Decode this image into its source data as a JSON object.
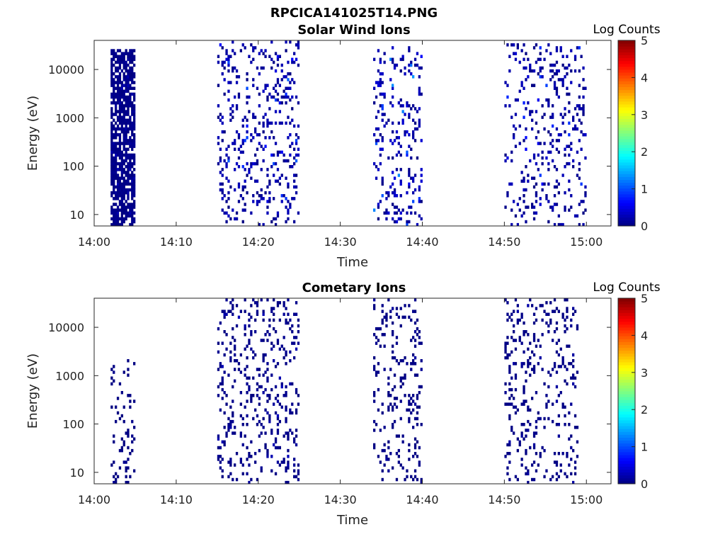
{
  "figure": {
    "title": "RPCICA141025T14.PNG"
  },
  "colorbar": {
    "label": "Log Counts",
    "ticks": [
      "0",
      "1",
      "2",
      "3",
      "4",
      "5"
    ],
    "min": 0,
    "max": 5
  },
  "chart_data": [
    {
      "type": "heatmap",
      "title": "Solar Wind Ions",
      "xlabel": "Time",
      "ylabel": "Energy (eV)",
      "xticks": [
        "14:00",
        "14:10",
        "14:20",
        "14:30",
        "14:40",
        "14:50",
        "15:00"
      ],
      "yticks": [
        "10",
        "100",
        "1000",
        "10000"
      ],
      "xlim": [
        "14:00",
        "15:03"
      ],
      "ylim": [
        5.8,
        40000
      ],
      "yscale": "log",
      "zlabel": "Log Counts",
      "zlim": [
        0,
        5
      ],
      "colormap": "jet",
      "bursts": [
        {
          "start": "14:02",
          "end": "14:05",
          "energy_range": [
            6,
            28000
          ],
          "max_log_counts": 0.3
        },
        {
          "start": "14:15",
          "end": "14:25",
          "energy_range": [
            6,
            38000
          ],
          "max_log_counts": 1.1
        },
        {
          "start": "14:34",
          "end": "14:40",
          "energy_range": [
            6,
            30000
          ],
          "max_log_counts": 1.4
        },
        {
          "start": "14:50",
          "end": "15:00",
          "energy_range": [
            6,
            36000
          ],
          "max_log_counts": 1.0
        }
      ]
    },
    {
      "type": "heatmap",
      "title": "Cometary Ions",
      "xlabel": "Time",
      "ylabel": "Energy (eV)",
      "xticks": [
        "14:00",
        "14:10",
        "14:20",
        "14:30",
        "14:40",
        "14:50",
        "15:00"
      ],
      "yticks": [
        "10",
        "100",
        "1000",
        "10000"
      ],
      "xlim": [
        "14:00",
        "15:03"
      ],
      "ylim": [
        5.8,
        40000
      ],
      "yscale": "log",
      "zlabel": "Log Counts",
      "zlim": [
        0,
        5
      ],
      "colormap": "jet",
      "bursts": [
        {
          "start": "14:02",
          "end": "14:05",
          "energy_range": [
            6,
            2100
          ],
          "max_log_counts": 0.1
        },
        {
          "start": "14:15",
          "end": "14:25",
          "energy_range": [
            6,
            38000
          ],
          "max_log_counts": 0.3
        },
        {
          "start": "14:34",
          "end": "14:40",
          "energy_range": [
            6,
            38000
          ],
          "max_log_counts": 0.2
        },
        {
          "start": "14:50",
          "end": "14:59",
          "energy_range": [
            6,
            38000
          ],
          "max_log_counts": 0.2
        }
      ]
    }
  ]
}
